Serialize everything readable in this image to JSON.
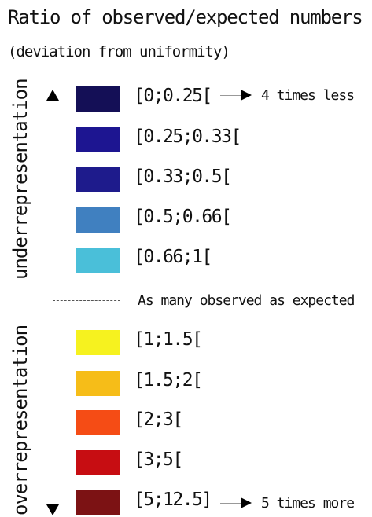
{
  "title": "Ratio of observed/expected numbers",
  "subtitle": "(deviation from uniformity)",
  "under_label": "underrepresentation",
  "over_label": "overrepresentation",
  "middle_label": "As many observed as expected",
  "under_classes": [
    {
      "label": "[0;0.25[",
      "color": "#140f56"
    },
    {
      "label": "[0.25;0.33[",
      "color": "#1d1591"
    },
    {
      "label": "[0.33;0.5[",
      "color": "#1e1b8c"
    },
    {
      "label": "[0.5;0.66[",
      "color": "#4080c0"
    },
    {
      "label": "[0.66;1[",
      "color": "#4abfd9"
    }
  ],
  "over_classes": [
    {
      "label": "[1;1.5[",
      "color": "#f6f21f"
    },
    {
      "label": "[1.5;2[",
      "color": "#f6bd18"
    },
    {
      "label": "[2;3[",
      "color": "#f54c15"
    },
    {
      "label": "[3;5[",
      "color": "#c70d12"
    },
    {
      "label": "[5;12.5]",
      "color": "#7c1214"
    }
  ],
  "note_top": "4 times less",
  "note_bottom": "5 times more"
}
